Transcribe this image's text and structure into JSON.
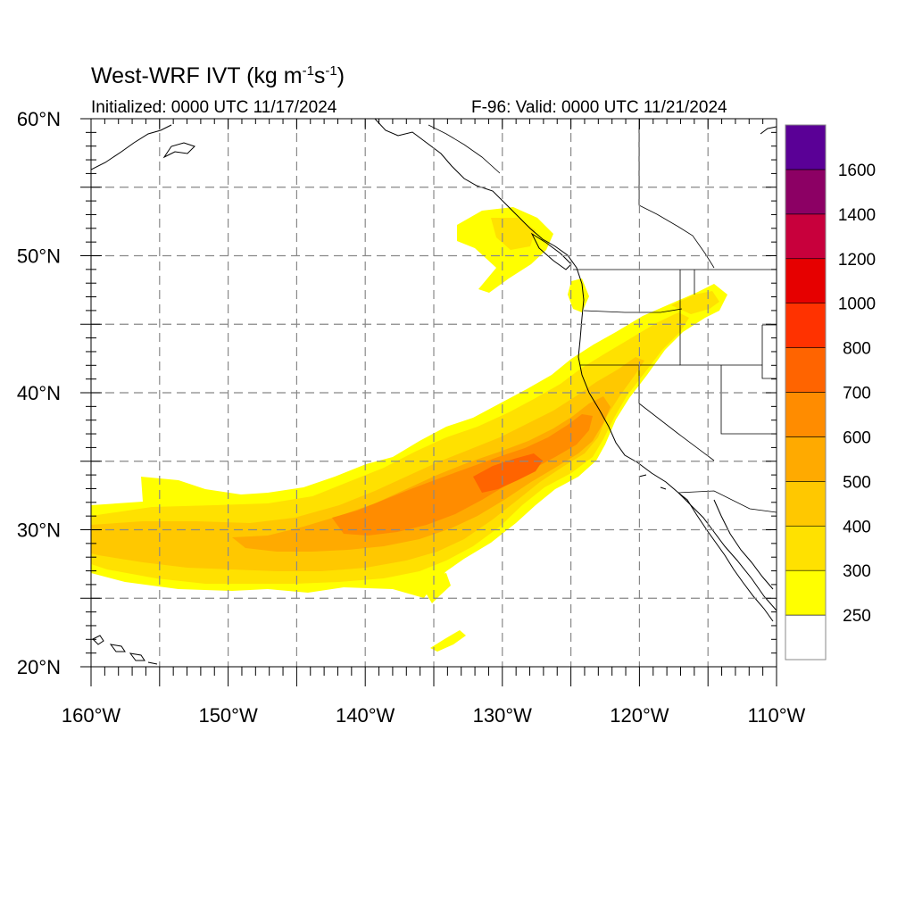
{
  "title": {
    "prefix": "West-WRF IVT (kg m",
    "exp1": "-1",
    "middle": "s",
    "exp2": "-1",
    "suffix": ")"
  },
  "subtitle_left": "Initialized: 0000 UTC 11/17/2024",
  "subtitle_right": "F-96: Valid: 0000 UTC 11/21/2024",
  "map": {
    "lon_range": [
      -160,
      -110
    ],
    "lat_range": [
      20,
      60
    ],
    "lon_ticks": [
      -160,
      -150,
      -140,
      -130,
      -120,
      -110
    ],
    "lat_ticks": [
      20,
      30,
      40,
      50,
      60
    ],
    "lon_labels": [
      "160°W",
      "150°W",
      "140°W",
      "130°W",
      "120°W",
      "110°W"
    ],
    "lat_labels": [
      "20°N",
      "30°N",
      "40°N",
      "50°N",
      "60°N"
    ],
    "gridline_step_deg": 5,
    "gridline_style": "dashed-gray"
  },
  "colorbar": {
    "labels": [
      "250",
      "300",
      "400",
      "500",
      "600",
      "700",
      "800",
      "1000",
      "1200",
      "1400",
      "1600"
    ],
    "colors": [
      "#ffffff",
      "#ffff00",
      "#ffe100",
      "#ffc800",
      "#ffaa00",
      "#ff8c00",
      "#ff6400",
      "#ff3200",
      "#e60000",
      "#c8003c",
      "#8c0064",
      "#5a0096"
    ]
  },
  "ivt_field": {
    "description_levels": [
      250,
      300,
      400,
      500,
      600,
      700,
      800
    ],
    "core_max_level": 800
  }
}
